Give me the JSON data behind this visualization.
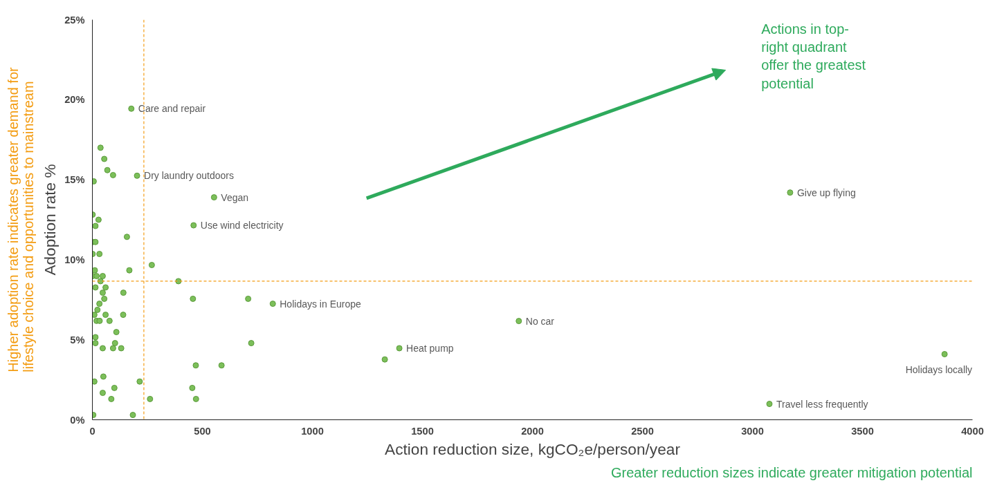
{
  "chart_data": {
    "type": "scatter",
    "xlabel": "Action reduction size, kgCO₂e/person/year",
    "ylabel": "Adoption rate %",
    "x": [
      177,
      203,
      553,
      460,
      3171,
      820,
      1938,
      1395,
      3077,
      3873,
      1329,
      37,
      54,
      68,
      94,
      6,
      1,
      28,
      14,
      157,
      3,
      14,
      1,
      32,
      270,
      168,
      11,
      1,
      19,
      47,
      37,
      391,
      14,
      60,
      47,
      141,
      54,
      457,
      708,
      32,
      23,
      9,
      60,
      140,
      19,
      33,
      78,
      109,
      14,
      14,
      103,
      47,
      94,
      131,
      722,
      470,
      587,
      50,
      9,
      215,
      47,
      100,
      454,
      86,
      262,
      471,
      4,
      184
    ],
    "values": [
      19.44,
      15.25,
      13.9,
      12.15,
      14.2,
      7.25,
      6.17,
      4.47,
      0.99,
      4.1,
      3.77,
      17.0,
      16.3,
      15.6,
      15.29,
      14.9,
      12.82,
      12.5,
      12.11,
      11.43,
      11.11,
      11.11,
      10.36,
      10.36,
      9.67,
      9.34,
      9.34,
      8.98,
      8.98,
      8.98,
      8.66,
      8.66,
      8.27,
      8.27,
      7.94,
      7.94,
      7.56,
      7.56,
      7.56,
      7.25,
      6.87,
      6.56,
      6.56,
      6.56,
      6.18,
      6.18,
      6.18,
      5.48,
      5.16,
      4.79,
      4.79,
      4.47,
      4.47,
      4.47,
      4.79,
      3.4,
      3.4,
      2.7,
      2.39,
      2.39,
      1.68,
      1.99,
      1.99,
      1.3,
      1.3,
      1.3,
      0.3,
      0.3
    ],
    "color": "#7cbf5a",
    "marker": "circle",
    "grid": false,
    "xlim": [
      0,
      4000
    ],
    "xticks": [
      0,
      500,
      1000,
      1500,
      2000,
      2500,
      3000,
      3500,
      4000
    ],
    "ylim": [
      0,
      25
    ],
    "yticks": [
      {
        "value": 0,
        "label": "0%"
      },
      {
        "value": 5,
        "label": "5%"
      },
      {
        "value": 10,
        "label": "10%"
      },
      {
        "value": 15,
        "label": "15%"
      },
      {
        "value": 20,
        "label": "20%"
      },
      {
        "value": 25,
        "label": "25%"
      }
    ],
    "ref_lines": [
      {
        "axis": "x",
        "value": 234,
        "color": "#f39c12",
        "line_style": "dashed"
      },
      {
        "axis": "y",
        "value": 8.66,
        "color": "#f39c12",
        "line_style": "dashed"
      }
    ],
    "annotations": [
      {
        "text": "Care and repair",
        "x": 177,
        "y": 19.44
      },
      {
        "text": "Dry laundry outdoors",
        "x": 203,
        "y": 15.25
      },
      {
        "text": "Vegan",
        "x": 553,
        "y": 13.9
      },
      {
        "text": "Use wind electricity",
        "x": 460,
        "y": 12.15
      },
      {
        "text": "Give up flying",
        "x": 3171,
        "y": 14.2
      },
      {
        "text": "Holidays in Europe",
        "x": 820,
        "y": 7.25
      },
      {
        "text": "No car",
        "x": 1938,
        "y": 6.17
      },
      {
        "text": "Heat pump",
        "x": 1395,
        "y": 4.47
      },
      {
        "text": "Travel less frequently",
        "x": 3077,
        "y": 0.99
      },
      {
        "text": "Holidays locally",
        "x": 3873,
        "y": 4.1
      },
      "Actions in top-right quadrant offer the greatest potential",
      "Higher adoption rate indicates greater demand for\nlifestyle choice and opportunities to mainstream",
      "Greater reduction sizes indicate greater mitigation potential"
    ]
  }
}
